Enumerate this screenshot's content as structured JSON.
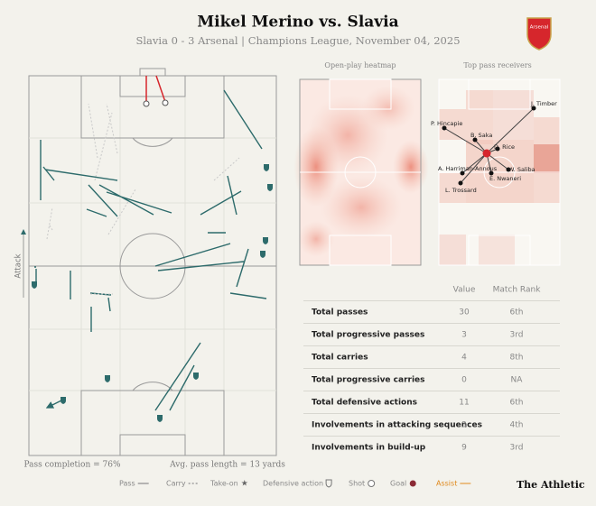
{
  "header": {
    "title": "Mikel Merino vs. Slavia",
    "subtitle": "Slavia 0 - 3 Arsenal | Champions League, November 04, 2025",
    "badge": "Arsenal"
  },
  "pass_map": {
    "direction_label": "Attack",
    "footer": [
      "Pass completion = 76%",
      "Avg. pass length = 13 yards"
    ]
  },
  "heatmap": {
    "title": "Open-play heatmap"
  },
  "receivers": {
    "title": "Top pass receivers",
    "players": [
      "J. Timber",
      "P. Hincapie",
      "B. Saka",
      "D. Rice",
      "A. Harriman-Annous",
      "W. Saliba",
      "E. Nwaneri",
      "L. Trossard"
    ]
  },
  "table": {
    "columns": [
      "Value",
      "Match Rank"
    ],
    "rows": [
      [
        "Total passes",
        30,
        "6th"
      ],
      [
        "Total progressive passes",
        3,
        "3rd"
      ],
      [
        "Total carries",
        4,
        "8th"
      ],
      [
        "Total progressive carries",
        0,
        "NA"
      ],
      [
        "Total defensive actions",
        11,
        "6th"
      ],
      [
        "Involvements in attacking sequences",
        3,
        "4th"
      ],
      [
        "Involvements in build-up",
        9,
        "3rd"
      ]
    ]
  },
  "legend": [
    "Pass",
    "Carry",
    "Take-on",
    "Defensive action",
    "Shot",
    "Goal",
    "Assist"
  ],
  "brand": "The Athletic"
}
